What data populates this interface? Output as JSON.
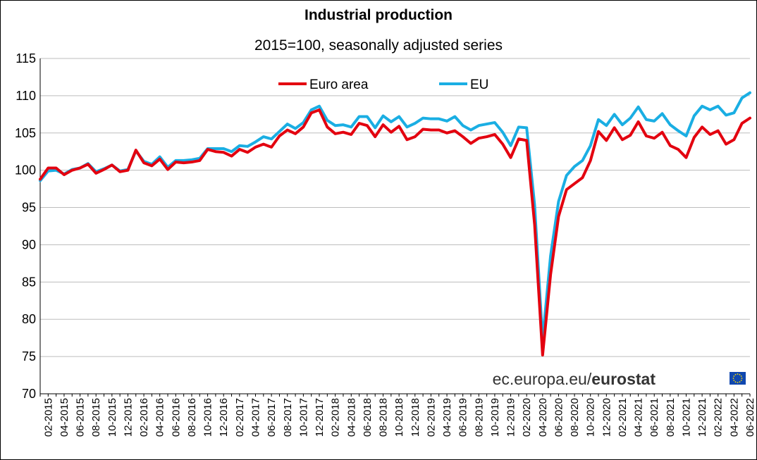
{
  "chart_data": {
    "type": "line",
    "title": "Industrial production",
    "subtitle": "2015=100, seasonally adjusted series",
    "xlabel": "",
    "ylabel": "",
    "ylim": [
      70,
      115
    ],
    "yticks": [
      70,
      75,
      80,
      85,
      90,
      95,
      100,
      105,
      110,
      115
    ],
    "grid": true,
    "legend_position": "top-center",
    "source_label_light": "ec.europa.eu/",
    "source_label_bold": "eurostat",
    "x_start": "01-2015",
    "x_end": "06-2022",
    "xtick_labels": [
      "02-2015",
      "04-2015",
      "06-2015",
      "08-2015",
      "10-2015",
      "12-2015",
      "02-2016",
      "04-2016",
      "06-2016",
      "08-2016",
      "10-2016",
      "12-2016",
      "02-2017",
      "04-2017",
      "06-2017",
      "08-2017",
      "10-2017",
      "12-2017",
      "02-2018",
      "04-2018",
      "06-2018",
      "08-2018",
      "10-2018",
      "12-2018",
      "02-2019",
      "04-2019",
      "06-2019",
      "08-2019",
      "10-2019",
      "12-2019",
      "02-2020",
      "04-2020",
      "06-2020",
      "08-2020",
      "10-2020",
      "12-2020",
      "02-2021",
      "04-2021",
      "06-2021",
      "08-2021",
      "10-2021",
      "12-2021",
      "02-2022",
      "04-2022",
      "06-2022"
    ],
    "series": [
      {
        "name": "Euro area",
        "color": "#e3000f",
        "values": [
          98.8,
          100.3,
          100.3,
          99.4,
          100.0,
          100.3,
          100.8,
          99.6,
          100.1,
          100.7,
          99.8,
          100.0,
          102.7,
          101.0,
          100.6,
          101.5,
          100.1,
          101.1,
          101.0,
          101.1,
          101.3,
          102.8,
          102.5,
          102.4,
          101.9,
          102.8,
          102.4,
          103.1,
          103.5,
          103.1,
          104.6,
          105.4,
          104.9,
          105.8,
          107.7,
          108.1,
          105.8,
          104.9,
          105.1,
          104.8,
          106.3,
          106.0,
          104.5,
          106.1,
          105.1,
          105.9,
          104.1,
          104.5,
          105.5,
          105.4,
          105.4,
          105.0,
          105.3,
          104.5,
          103.6,
          104.3,
          104.5,
          104.8,
          103.5,
          101.7,
          104.2,
          104.0,
          92.7,
          75.2,
          86.0,
          93.8,
          97.4,
          98.2,
          99.0,
          101.3,
          105.2,
          104.0,
          105.7,
          104.1,
          104.7,
          106.5,
          104.6,
          104.3,
          105.1,
          103.3,
          102.8,
          101.7,
          104.4,
          105.8,
          104.8,
          105.3,
          103.5,
          104.1,
          106.3,
          107.0
        ]
      },
      {
        "name": "EU",
        "color": "#1aaee3",
        "values": [
          98.6,
          99.9,
          100.0,
          99.5,
          100.1,
          100.3,
          100.9,
          99.8,
          100.2,
          100.7,
          99.9,
          100.1,
          102.6,
          101.2,
          100.8,
          101.8,
          100.4,
          101.3,
          101.3,
          101.4,
          101.6,
          102.9,
          102.9,
          102.9,
          102.5,
          103.3,
          103.2,
          103.8,
          104.5,
          104.2,
          105.2,
          106.2,
          105.6,
          106.4,
          108.1,
          108.6,
          106.7,
          106.0,
          106.1,
          105.8,
          107.2,
          107.2,
          105.7,
          107.3,
          106.5,
          107.2,
          105.8,
          106.3,
          107.0,
          106.9,
          106.9,
          106.6,
          107.2,
          106.0,
          105.4,
          106.0,
          106.2,
          106.4,
          105.1,
          103.3,
          105.8,
          105.7,
          95.3,
          77.2,
          88.5,
          95.8,
          99.3,
          100.5,
          101.3,
          103.3,
          106.8,
          106.0,
          107.5,
          106.1,
          107.0,
          108.5,
          106.8,
          106.6,
          107.6,
          106.1,
          105.3,
          104.6,
          107.3,
          108.6,
          108.1,
          108.6,
          107.4,
          107.7,
          109.7,
          110.4
        ]
      }
    ]
  }
}
